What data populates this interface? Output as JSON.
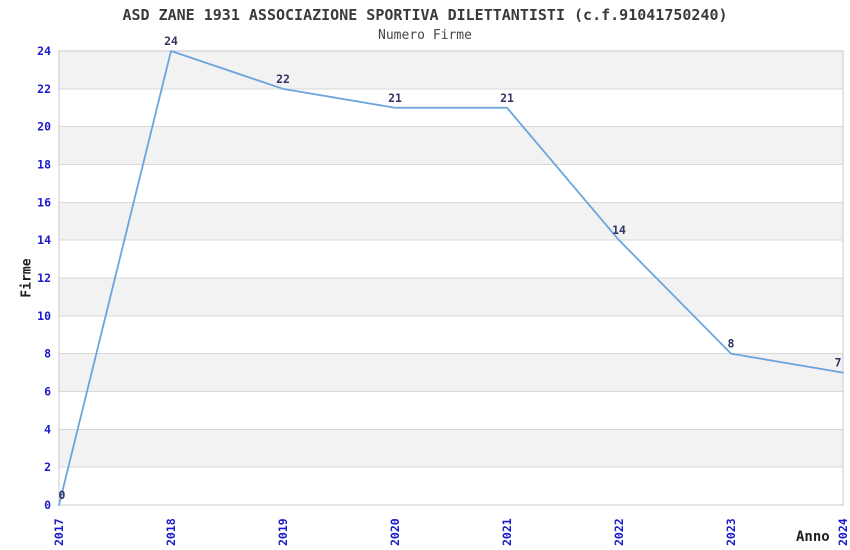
{
  "chart_data": {
    "type": "line",
    "title": "ASD ZANE 1931 ASSOCIAZIONE SPORTIVA DILETTANTISTI (c.f.91041750240)",
    "subtitle": "Numero Firme",
    "xlabel": "Anno",
    "ylabel": "Firme",
    "categories": [
      "2017",
      "2018",
      "2019",
      "2020",
      "2021",
      "2022",
      "2023",
      "2024"
    ],
    "values": [
      0,
      24,
      22,
      21,
      21,
      14,
      8,
      7
    ],
    "data_labels": [
      "0",
      "24",
      "22",
      "21",
      "21",
      "14",
      "8",
      "7"
    ],
    "ylim": [
      0,
      24
    ],
    "yticks": [
      0,
      2,
      4,
      6,
      8,
      10,
      12,
      14,
      16,
      18,
      20,
      22,
      24
    ],
    "grid": "alternating horizontal gray bands every 2 units, gridline at each even tick",
    "legend": "none",
    "markers": "none",
    "colors": {
      "line": "#6ba5de",
      "tick_label": "#1a1acc",
      "data_label": "#333366",
      "band_gray": "#f2f2f2",
      "band_white": "#ffffff",
      "gridline": "#d8d8d8",
      "plot_border": "#c8c8c8",
      "title_text": "#3a3a3a",
      "axis_title_text": "#1f1f1f"
    }
  }
}
